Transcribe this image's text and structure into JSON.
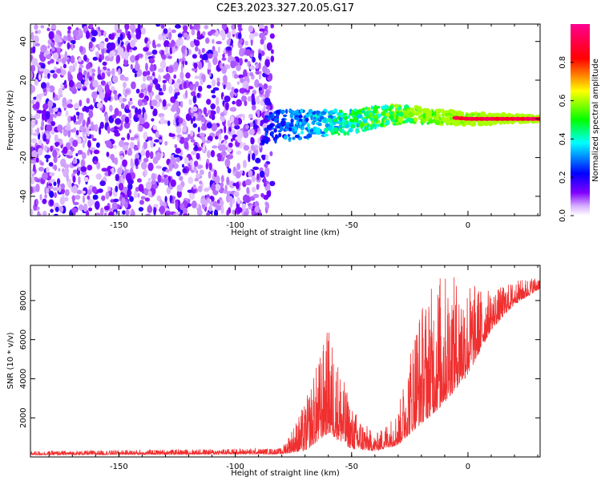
{
  "title": "C2E3.2023.327.20.05.G17",
  "chart_data": [
    {
      "type": "heatmap",
      "xlabel": "Height of straight line (km)",
      "ylabel": "Frequency (Hz)",
      "xlim": [
        -188,
        31
      ],
      "ylim": [
        -50,
        49
      ],
      "x_ticks": [
        -150,
        -100,
        -50,
        0
      ],
      "y_ticks": [
        -40,
        -20,
        0,
        20,
        40
      ],
      "colorbar": {
        "label": "Normalized spectral amplitude",
        "range": [
          0.0,
          1.0
        ],
        "ticks": [
          0.0,
          0.2,
          0.4,
          0.6,
          0.8
        ],
        "colors": [
          "#ffffff",
          "#8000ff",
          "#0000ff",
          "#00ffff",
          "#00ff00",
          "#ffff00",
          "#ff0000",
          "#ff0080"
        ]
      },
      "features": [
        {
          "name": "noise",
          "x_range": [
            -188,
            -84
          ],
          "y_range": [
            -50,
            49
          ],
          "amplitude": [
            0.05,
            0.2
          ]
        },
        {
          "name": "signal-trace",
          "points": [
            [
              -88,
              -4
            ],
            [
              -75,
              -3
            ],
            [
              -60,
              -2
            ],
            [
              -50,
              -2
            ],
            [
              -40,
              1
            ],
            [
              -30,
              2
            ],
            [
              -20,
              2
            ],
            [
              -10,
              1
            ],
            [
              0,
              0
            ],
            [
              10,
              0
            ],
            [
              31,
              0
            ]
          ],
          "amplitude_start": 0.15,
          "amplitude_end": 0.9
        }
      ]
    },
    {
      "type": "line",
      "xlabel": "Height of straight line (km)",
      "ylabel": "SNR (10 * v/v)",
      "xlim": [
        -188,
        31
      ],
      "ylim": [
        0,
        9800
      ],
      "x_ticks": [
        -150,
        -100,
        -50,
        0
      ],
      "y_ticks": [
        2000,
        4000,
        6000,
        8000
      ],
      "line_color": "#f03030",
      "envelope": [
        {
          "x": -188,
          "base": 100,
          "amp": 200
        },
        {
          "x": -80,
          "base": 150,
          "amp": 300
        },
        {
          "x": -70,
          "base": 300,
          "amp": 2500
        },
        {
          "x": -60,
          "base": 1200,
          "amp": 5500
        },
        {
          "x": -50,
          "base": 400,
          "amp": 2200
        },
        {
          "x": -40,
          "base": 300,
          "amp": 800
        },
        {
          "x": -30,
          "base": 600,
          "amp": 1800
        },
        {
          "x": -22,
          "base": 1500,
          "amp": 6000
        },
        {
          "x": -12,
          "base": 2500,
          "amp": 7000
        },
        {
          "x": 0,
          "base": 4200,
          "amp": 4800
        },
        {
          "x": 10,
          "base": 6500,
          "amp": 2000
        },
        {
          "x": 20,
          "base": 7800,
          "amp": 1200
        },
        {
          "x": 31,
          "base": 8600,
          "amp": 700
        }
      ]
    }
  ]
}
